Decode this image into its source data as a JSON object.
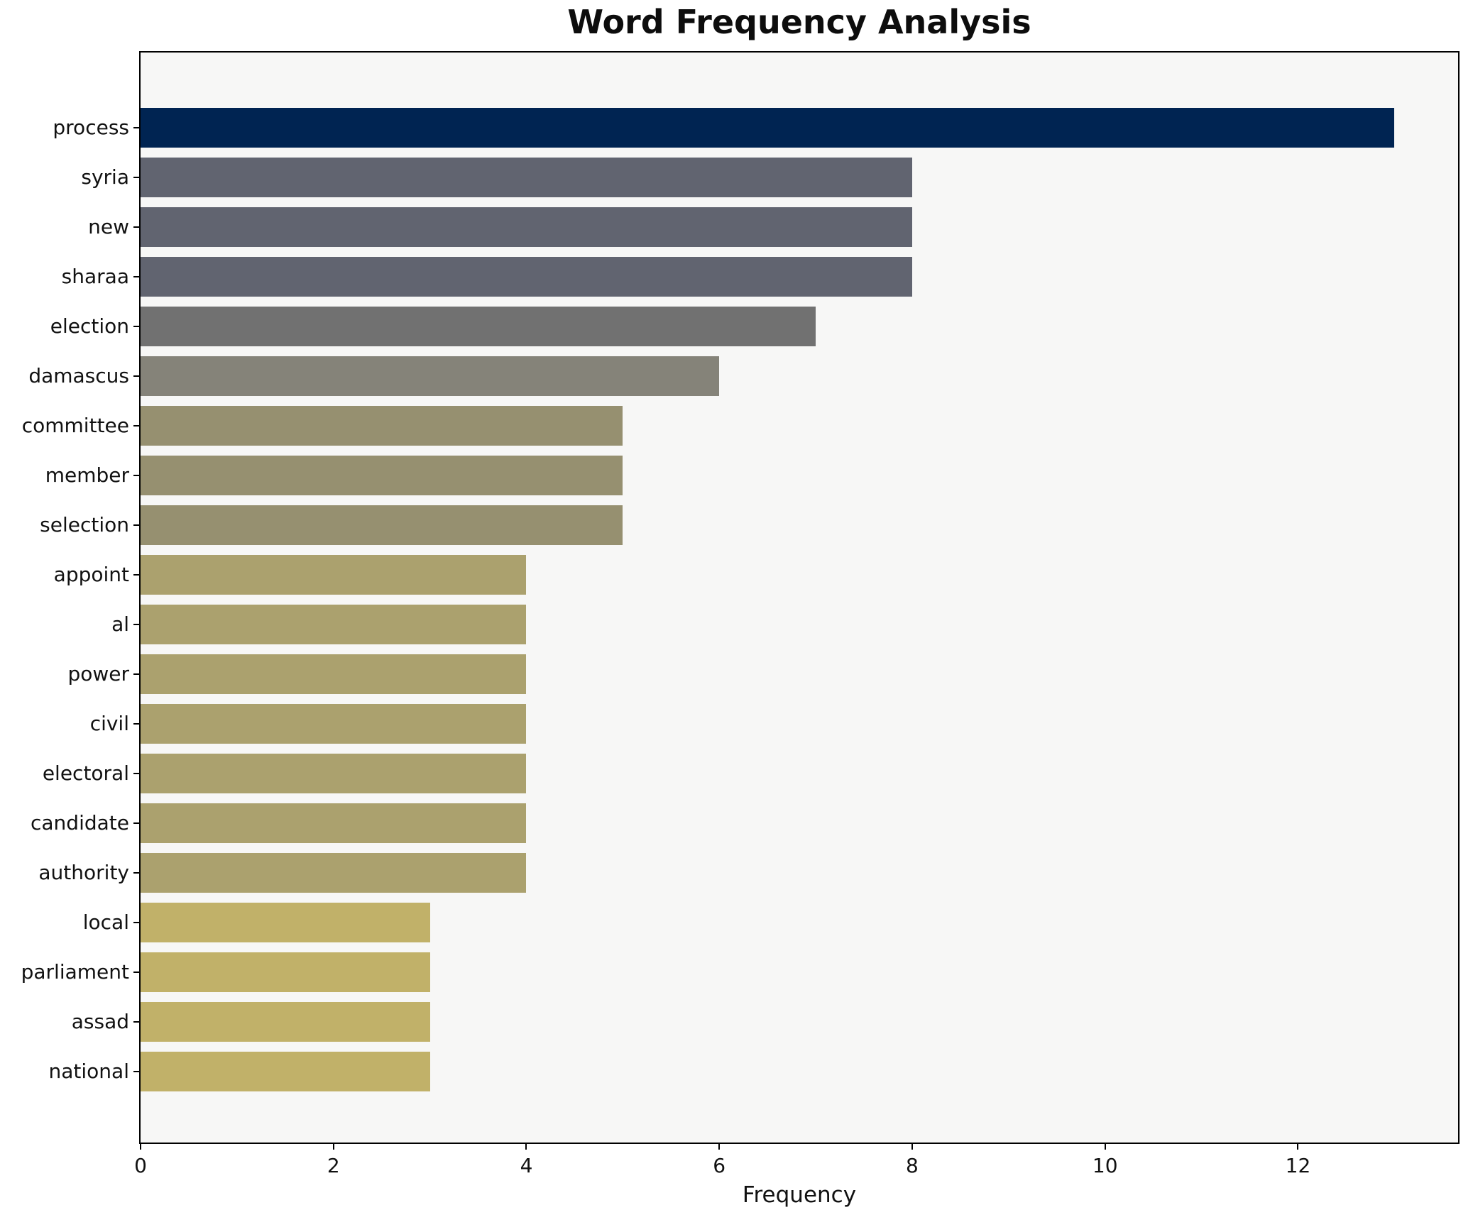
{
  "title": "Word Frequency Analysis",
  "chart_data": {
    "type": "bar",
    "orientation": "horizontal",
    "title": "Word Frequency Analysis",
    "xlabel": "Frequency",
    "ylabel": "",
    "xlim": [
      0,
      13.66
    ],
    "xticks": [
      0,
      2,
      4,
      6,
      8,
      10,
      12
    ],
    "grid": false,
    "legend": false,
    "categories": [
      "process",
      "syria",
      "new",
      "sharaa",
      "election",
      "damascus",
      "committee",
      "member",
      "selection",
      "appoint",
      "al",
      "power",
      "civil",
      "electoral",
      "candidate",
      "authority",
      "local",
      "parliament",
      "assad",
      "national"
    ],
    "values": [
      13,
      8,
      8,
      8,
      7,
      6,
      5,
      5,
      5,
      4,
      4,
      4,
      4,
      4,
      4,
      4,
      3,
      3,
      3,
      3
    ],
    "bar_colors": [
      "#002452",
      "#616470",
      "#616470",
      "#616470",
      "#717171",
      "#858379",
      "#969070",
      "#969070",
      "#969070",
      "#aba16e",
      "#aba16e",
      "#aba16e",
      "#aba16e",
      "#aba16e",
      "#aba16e",
      "#aba16e",
      "#c1b169",
      "#c1b169",
      "#c1b169",
      "#c1b169"
    ],
    "plot_background": "#f7f7f6",
    "figure_background": "#ffffff",
    "spine_color": "#000000"
  }
}
